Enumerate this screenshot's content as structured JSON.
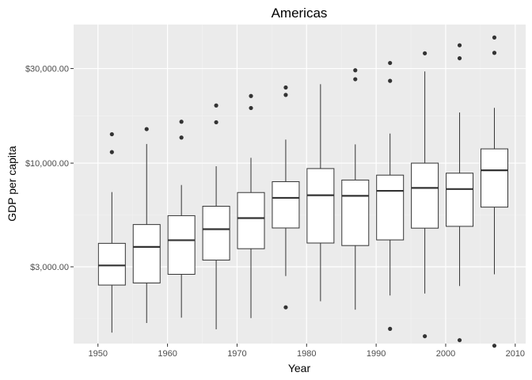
{
  "chart_data": {
    "type": "box",
    "title": "Americas",
    "xlabel": "Year",
    "ylabel": "GDP per capita",
    "y_scale": "log10",
    "ylim": [
      1230,
      50000
    ],
    "xlim": [
      1946.5,
      2011.5
    ],
    "x_ticks": [
      1950,
      1960,
      1970,
      1980,
      1990,
      2000,
      2010
    ],
    "x_tick_labels": [
      "1950",
      "1960",
      "1970",
      "1980",
      "1990",
      "2000",
      "2010"
    ],
    "y_ticks": [
      3000,
      10000,
      30000
    ],
    "y_tick_labels": [
      "$3,000.00",
      "$10,000.00",
      "$30,000.00"
    ],
    "grid": true,
    "legend": "none",
    "colors": {
      "panel": "#ebebeb",
      "grid_major": "#ffffff",
      "grid_minor": "#f2f2f2",
      "box_fill": "#ffffff",
      "box_line": "#333333",
      "outlier": "#333333"
    },
    "boxes": [
      {
        "x": 1952,
        "q1": 2427,
        "median": 3048,
        "q3": 3940,
        "whisker_low": 1397,
        "whisker_high": 7144,
        "outliers": [
          11367,
          13990
        ]
      },
      {
        "x": 1957,
        "q1": 2487,
        "median": 3781,
        "q3": 4901,
        "whisker_low": 1562,
        "whisker_high": 12489,
        "outliers": [
          14847
        ]
      },
      {
        "x": 1962,
        "q1": 2750,
        "median": 4086,
        "q3": 5433,
        "whisker_low": 1662,
        "whisker_high": 7757,
        "outliers": [
          13462,
          16173
        ]
      },
      {
        "x": 1967,
        "q1": 3243,
        "median": 4643,
        "q3": 6061,
        "whisker_low": 1452,
        "whisker_high": 9645,
        "outliers": [
          16077,
          19530
        ]
      },
      {
        "x": 1972,
        "q1": 3702,
        "median": 5281,
        "q3": 7106,
        "whisker_low": 1654,
        "whisker_high": 10638,
        "outliers": [
          18970,
          21806
        ]
      },
      {
        "x": 1977,
        "q1": 4709,
        "median": 6680,
        "q3": 8064,
        "whisker_low": 2695,
        "whisker_high": 13143,
        "outliers": [
          1874,
          22090,
          24072
        ]
      },
      {
        "x": 1982,
        "q1": 3954,
        "median": 6888,
        "q3": 9387,
        "whisker_low": 2011,
        "whisker_high": 25010,
        "outliers": []
      },
      {
        "x": 1987,
        "q1": 3840,
        "median": 6840,
        "q3": 8217,
        "whisker_low": 1823,
        "whisker_high": 12432,
        "outliers": [
          26500,
          29400
        ]
      },
      {
        "x": 1992,
        "q1": 4100,
        "median": 7250,
        "q3": 8700,
        "whisker_low": 2150,
        "whisker_high": 14100,
        "outliers": [
          1460,
          26000,
          32000
        ]
      },
      {
        "x": 1997,
        "q1": 4700,
        "median": 7500,
        "q3": 10000,
        "whisker_low": 2200,
        "whisker_high": 29000,
        "outliers": [
          1340,
          35800
        ]
      },
      {
        "x": 2002,
        "q1": 4800,
        "median": 7400,
        "q3": 8900,
        "whisker_low": 2400,
        "whisker_high": 18000,
        "outliers": [
          1280,
          33800,
          39300
        ]
      },
      {
        "x": 2007,
        "q1": 6000,
        "median": 9200,
        "q3": 11800,
        "whisker_low": 2750,
        "whisker_high": 19000,
        "outliers": [
          1200,
          36000,
          43000
        ]
      }
    ]
  }
}
